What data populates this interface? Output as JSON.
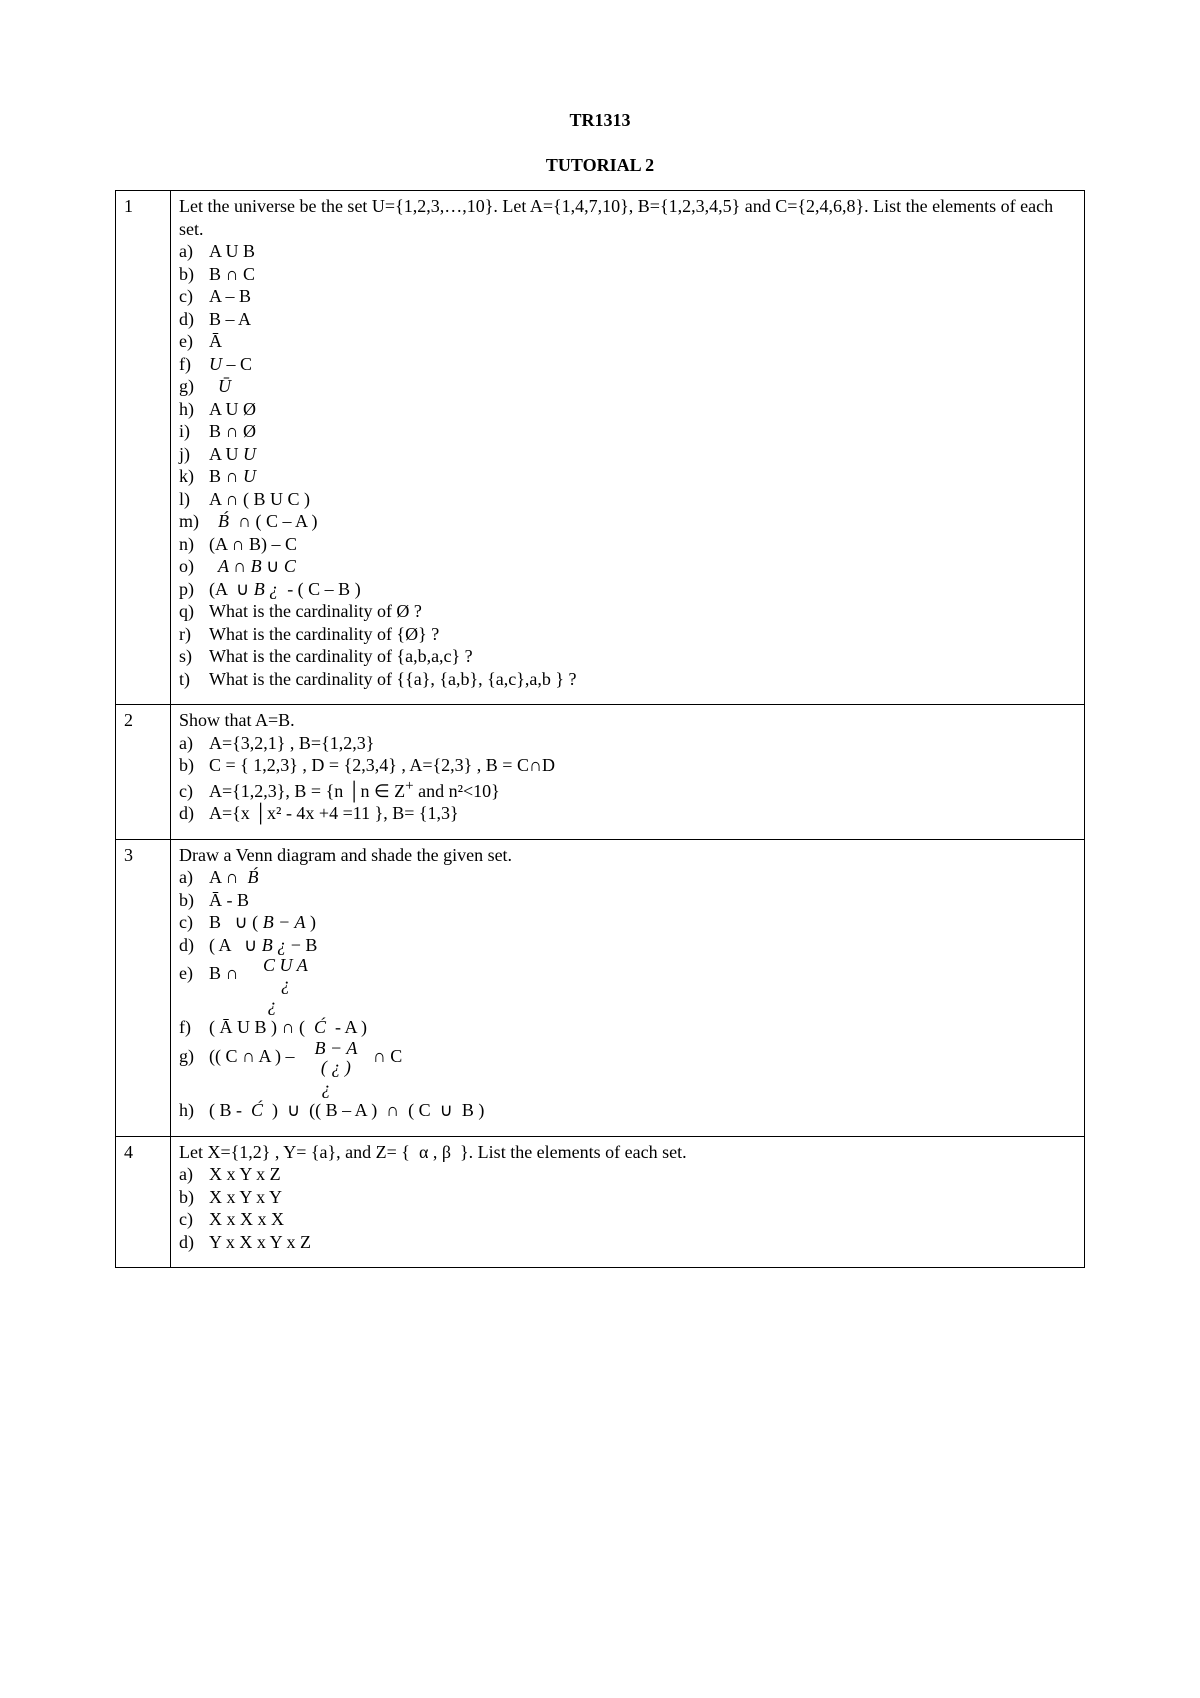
{
  "title": "TR1313",
  "subtitle": "TUTORIAL 2",
  "questions": [
    {
      "num": "1",
      "intro": "Let the universe be the set U={1,2,3,…,10}. Let A={1,4,7,10}, B={1,2,3,4,5} and C={2,4,6,8}. List the elements of each set.",
      "items": [
        {
          "label": "a)",
          "text": "A U B"
        },
        {
          "label": "b)",
          "text": "B ∩ C"
        },
        {
          "label": "c)",
          "text": "A – B"
        },
        {
          "label": "d)",
          "text": "B – A"
        },
        {
          "label": "e)",
          "text": "Ā"
        },
        {
          "label": "f)",
          "text": "<span class='math-i'>U</span> – C"
        },
        {
          "label": "g)",
          "text": "&nbsp;&nbsp;<span class='math-i'>Ū</span>"
        },
        {
          "label": "h)",
          "text": "A U Ø"
        },
        {
          "label": "i)",
          "text": "B ∩ Ø"
        },
        {
          "label": "j)",
          "text": "A U <span class='math-i'>U</span>"
        },
        {
          "label": "k)",
          "text": "B ∩ <span class='math-i'>U</span>"
        },
        {
          "label": "l)",
          "text": "A ∩ ( B U C )"
        },
        {
          "label": "m)",
          "text": "&nbsp;&nbsp;<span class='math-i'>B́</span>&nbsp;&nbsp;∩ ( C – A )"
        },
        {
          "label": "n)",
          "text": "(A ∩ B) – C"
        },
        {
          "label": "o)",
          "text": "&nbsp;&nbsp;<span class='math-i'>A ∩ B</span>&nbsp;∪&nbsp;<span class='math-i'>C</span>"
        },
        {
          "label": "p)",
          "text": "(A &nbsp;∪ <span class='math-i'>B ¿</span>&nbsp;&nbsp;- ( C – B )"
        },
        {
          "label": "q)",
          "text": "What is the cardinality of Ø ?"
        },
        {
          "label": "r)",
          "text": "What is the cardinality of {Ø} ?"
        },
        {
          "label": "s)",
          "text": "What is the cardinality of {a,b,a,c} ?"
        },
        {
          "label": "t)",
          "text": "What is the cardinality of {{a}, {a,b}, {a,c},a,b } ?"
        }
      ]
    },
    {
      "num": "2",
      "intro": "Show that A=B.",
      "items": [
        {
          "label": "a)",
          "text": "A={3,2,1} , B={1,2,3}"
        },
        {
          "label": "b)",
          "text": "C = { 1,2,3} , D = {2,3,4} , A={2,3} , B = C∩D"
        },
        {
          "label": "c)",
          "text": "A={1,2,3}, B = {n │n ∈ Z<sup>+</sup> and n²&lt;10}"
        },
        {
          "label": "d)",
          "text": "A={x │x² - 4x +4 =11 }, B= {1,3}"
        }
      ]
    },
    {
      "num": "3",
      "intro": "Draw a Venn diagram and shade the given set.",
      "items": [
        {
          "label": "a)",
          "text": "A ∩ &nbsp;<span class='math-i'>B́</span>"
        },
        {
          "label": "b)",
          "text": "Ā - B"
        },
        {
          "label": "c)",
          "text": "B &nbsp;&nbsp;∪ ( <span class='math-i'>B − A</span> )"
        },
        {
          "label": "d)",
          "text": "( A &nbsp;&nbsp;∪ <span class='math-i'>B ¿</span> − B"
        },
        {
          "label": "e)",
          "text": "B ∩ &nbsp;&nbsp;&nbsp;&nbsp;<span class='frac'><span class='top'>C U A</span><span class='bot'>¿</span></span><br>&nbsp;&nbsp;&nbsp;&nbsp;&nbsp;&nbsp;&nbsp;&nbsp;&nbsp;&nbsp;&nbsp;&nbsp;&nbsp;<span class='math-i'>¿</span>"
        },
        {
          "label": "f)",
          "text": "( Ā U B ) ∩ ( &nbsp;<span class='math-i'>Ć</span>&nbsp;&nbsp;- A )"
        },
        {
          "label": "g)",
          "text": "(( C ∩ A ) – &nbsp;&nbsp;&nbsp;<span class='frac'><span class='top'>B − A</span><span class='bot'>( ¿ )</span></span>&nbsp;&nbsp;&nbsp;∩ C<br>&nbsp;&nbsp;&nbsp;&nbsp;&nbsp;&nbsp;&nbsp;&nbsp;&nbsp;&nbsp;&nbsp;&nbsp;&nbsp;&nbsp;&nbsp;&nbsp;&nbsp;&nbsp;&nbsp;&nbsp;&nbsp;&nbsp;&nbsp;&nbsp;&nbsp;<span class='math-i'>¿</span>"
        },
        {
          "label": "h)",
          "text": "( B - &nbsp;<span class='math-i'>Ć</span>&nbsp;&nbsp;)&nbsp;&nbsp;∪&nbsp;&nbsp;(( B – A )&nbsp;&nbsp;∩&nbsp;&nbsp;( C&nbsp;&nbsp;∪&nbsp;&nbsp;B )"
        }
      ]
    },
    {
      "num": "4",
      "intro": "Let X={1,2} , Y= {a}, and Z= { &nbsp;<span class='math-i'>α , β</span>&nbsp;&nbsp;}. List the elements of each set.",
      "items": [
        {
          "label": "a)",
          "text": "X x Y x Z"
        },
        {
          "label": "b)",
          "text": "X x Y x Y"
        },
        {
          "label": "c)",
          "text": "X x X x X"
        },
        {
          "label": "d)",
          "text": "Y x X x Y x Z"
        }
      ]
    }
  ]
}
